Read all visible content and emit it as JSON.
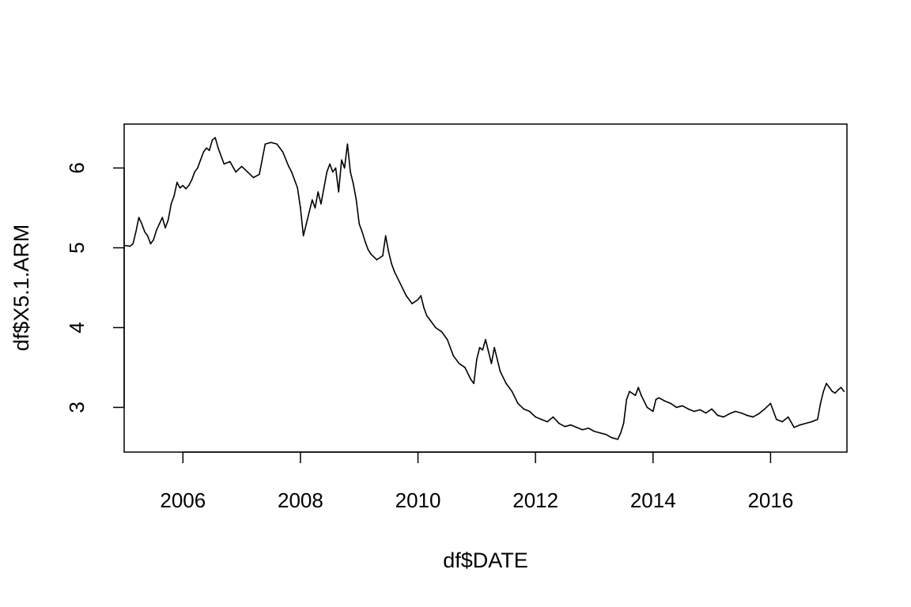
{
  "chart_data": {
    "type": "line",
    "title": "",
    "xlabel": "df$DATE",
    "ylabel": "df$X5.1.ARM",
    "xlim": [
      2005.0,
      2017.3
    ],
    "ylim": [
      2.44,
      6.55
    ],
    "x_ticks": [
      2006,
      2008,
      2010,
      2012,
      2014,
      2016
    ],
    "x_tick_labels": [
      "2006",
      "2008",
      "2010",
      "2012",
      "2014",
      "2016"
    ],
    "y_ticks": [
      3,
      4,
      5,
      6
    ],
    "y_tick_labels": [
      "3",
      "4",
      "5",
      "6"
    ],
    "grid": false,
    "line_color": "#000000",
    "series": [
      {
        "x": [
          2005.0,
          2005.1,
          2005.15,
          2005.2,
          2005.25,
          2005.3,
          2005.35,
          2005.4,
          2005.45,
          2005.5,
          2005.55,
          2005.6,
          2005.65,
          2005.7,
          2005.75,
          2005.8,
          2005.85,
          2005.9,
          2005.95,
          2006.0,
          2006.05,
          2006.1,
          2006.15,
          2006.2,
          2006.25,
          2006.3,
          2006.35,
          2006.4,
          2006.45,
          2006.5,
          2006.55,
          2006.6,
          2006.7,
          2006.8,
          2006.9,
          2007.0,
          2007.1,
          2007.2,
          2007.3,
          2007.4,
          2007.5,
          2007.6,
          2007.7,
          2007.8,
          2007.85,
          2007.9,
          2007.95,
          2008.0,
          2008.05,
          2008.1,
          2008.15,
          2008.2,
          2008.25,
          2008.3,
          2008.35,
          2008.4,
          2008.45,
          2008.5,
          2008.55,
          2008.6,
          2008.65,
          2008.7,
          2008.75,
          2008.8,
          2008.85,
          2008.9,
          2008.95,
          2009.0,
          2009.05,
          2009.1,
          2009.15,
          2009.2,
          2009.3,
          2009.4,
          2009.45,
          2009.5,
          2009.55,
          2009.6,
          2009.7,
          2009.8,
          2009.9,
          2010.0,
          2010.05,
          2010.1,
          2010.15,
          2010.2,
          2010.3,
          2010.4,
          2010.5,
          2010.6,
          2010.7,
          2010.8,
          2010.9,
          2010.95,
          2011.0,
          2011.05,
          2011.1,
          2011.15,
          2011.2,
          2011.25,
          2011.3,
          2011.35,
          2011.4,
          2011.5,
          2011.6,
          2011.7,
          2011.8,
          2011.9,
          2012.0,
          2012.1,
          2012.2,
          2012.3,
          2012.4,
          2012.5,
          2012.6,
          2012.7,
          2012.8,
          2012.9,
          2013.0,
          2013.1,
          2013.2,
          2013.3,
          2013.4,
          2013.45,
          2013.5,
          2013.55,
          2013.6,
          2013.7,
          2013.75,
          2013.8,
          2013.9,
          2014.0,
          2014.05,
          2014.1,
          2014.2,
          2014.3,
          2014.4,
          2014.5,
          2014.6,
          2014.7,
          2014.8,
          2014.9,
          2015.0,
          2015.1,
          2015.2,
          2015.3,
          2015.4,
          2015.5,
          2015.6,
          2015.7,
          2015.8,
          2015.9,
          2016.0,
          2016.1,
          2016.2,
          2016.3,
          2016.4,
          2016.5,
          2016.6,
          2016.7,
          2016.8,
          2016.85,
          2016.9,
          2016.95,
          2017.0,
          2017.05,
          2017.1,
          2017.15,
          2017.2,
          2017.25
        ],
        "y": [
          5.03,
          5.02,
          5.05,
          5.2,
          5.38,
          5.3,
          5.2,
          5.15,
          5.05,
          5.1,
          5.22,
          5.3,
          5.38,
          5.25,
          5.35,
          5.55,
          5.65,
          5.82,
          5.75,
          5.78,
          5.74,
          5.78,
          5.85,
          5.95,
          6.0,
          6.1,
          6.2,
          6.25,
          6.22,
          6.35,
          6.38,
          6.25,
          6.05,
          6.08,
          5.95,
          6.02,
          5.95,
          5.88,
          5.92,
          6.3,
          6.32,
          6.3,
          6.2,
          6.02,
          5.95,
          5.85,
          5.75,
          5.5,
          5.15,
          5.3,
          5.45,
          5.6,
          5.5,
          5.7,
          5.55,
          5.75,
          5.95,
          6.05,
          5.95,
          6.0,
          5.7,
          6.1,
          6.0,
          6.3,
          5.95,
          5.8,
          5.6,
          5.3,
          5.2,
          5.08,
          4.98,
          4.92,
          4.85,
          4.9,
          5.15,
          4.95,
          4.8,
          4.7,
          4.55,
          4.4,
          4.3,
          4.35,
          4.4,
          4.25,
          4.15,
          4.1,
          4.0,
          3.95,
          3.85,
          3.65,
          3.55,
          3.5,
          3.35,
          3.3,
          3.6,
          3.75,
          3.72,
          3.85,
          3.7,
          3.55,
          3.75,
          3.6,
          3.45,
          3.3,
          3.2,
          3.05,
          2.98,
          2.95,
          2.88,
          2.85,
          2.82,
          2.88,
          2.8,
          2.76,
          2.78,
          2.75,
          2.72,
          2.74,
          2.7,
          2.68,
          2.66,
          2.62,
          2.6,
          2.68,
          2.8,
          3.1,
          3.2,
          3.15,
          3.25,
          3.15,
          3.0,
          2.95,
          3.1,
          3.12,
          3.08,
          3.05,
          3.0,
          3.02,
          2.98,
          2.95,
          2.97,
          2.93,
          2.98,
          2.9,
          2.88,
          2.92,
          2.95,
          2.93,
          2.9,
          2.88,
          2.92,
          2.98,
          3.05,
          2.85,
          2.82,
          2.88,
          2.75,
          2.78,
          2.8,
          2.82,
          2.85,
          3.05,
          3.2,
          3.3,
          3.25,
          3.2,
          3.18,
          3.22,
          3.25,
          3.2
        ]
      }
    ]
  }
}
